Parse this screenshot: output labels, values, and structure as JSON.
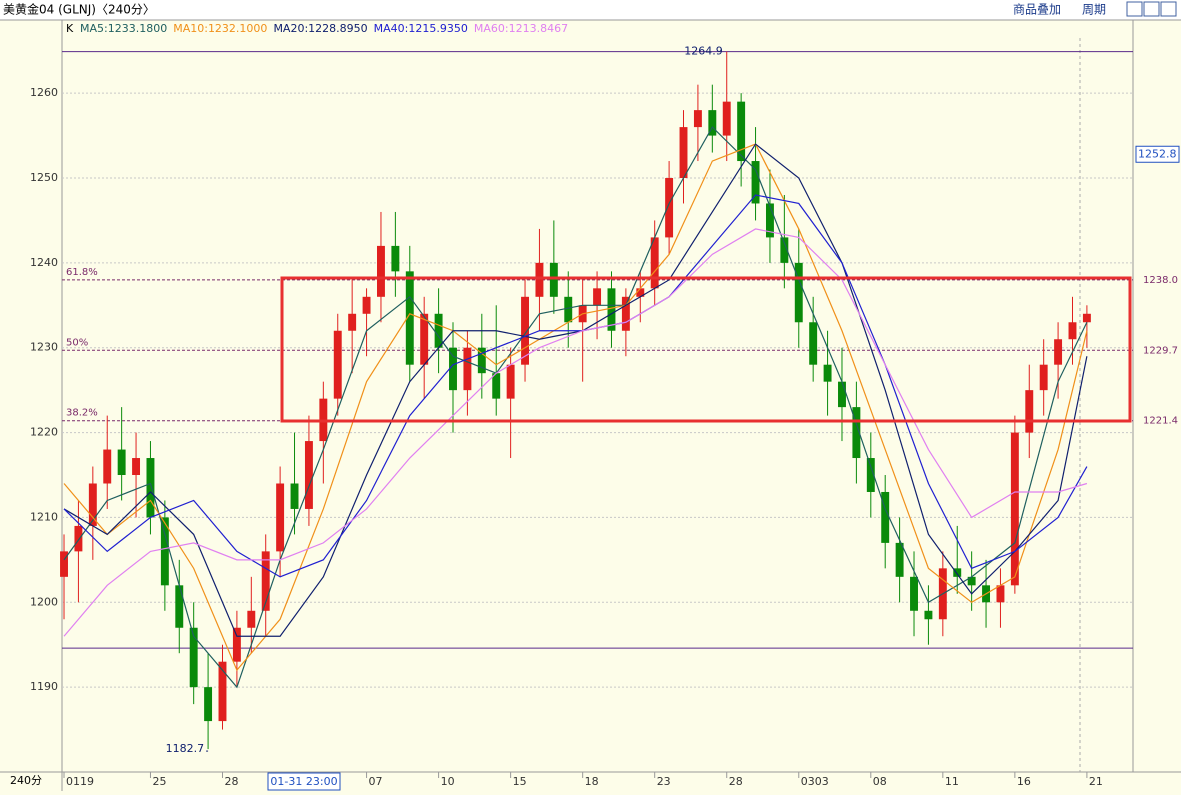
{
  "chart_data": {
    "type": "candlestick",
    "title": "美黄金04 (GLNJ)〈240分〉",
    "toolbar": [
      "商品叠加",
      "周期"
    ],
    "period_label": "240分",
    "cursor_label": "01-31 23:00",
    "candle_label": "K",
    "up_color": "#e0201e",
    "down_color": "#0a8a0a",
    "ylim": [
      1180,
      1266.5
    ],
    "yticks": [
      1190,
      1200,
      1210,
      1220,
      1230,
      1240,
      1250,
      1260
    ],
    "xlim": [
      -0.14,
      74.2
    ],
    "xticks": [
      {
        "value": 0,
        "label": "0119"
      },
      {
        "value": 6,
        "label": "25"
      },
      {
        "value": 11,
        "label": "28"
      },
      {
        "value": 21,
        "label": "07"
      },
      {
        "value": 26,
        "label": "10"
      },
      {
        "value": 31,
        "label": "15"
      },
      {
        "value": 36,
        "label": "18"
      },
      {
        "value": 41,
        "label": "23"
      },
      {
        "value": 46,
        "label": "28"
      },
      {
        "value": 51,
        "label": "0303"
      },
      {
        "value": 56,
        "label": "08"
      },
      {
        "value": 61,
        "label": "11"
      },
      {
        "value": 66,
        "label": "16"
      },
      {
        "value": 71,
        "label": "21"
      }
    ],
    "grid": true,
    "candles": [
      [
        1203,
        1208,
        1198,
        1206
      ],
      [
        1206,
        1212,
        1200,
        1209
      ],
      [
        1209,
        1216,
        1205,
        1214
      ],
      [
        1214,
        1222,
        1211,
        1218
      ],
      [
        1218,
        1223,
        1212,
        1215
      ],
      [
        1215,
        1220,
        1210,
        1217
      ],
      [
        1217,
        1219,
        1208,
        1210
      ],
      [
        1210,
        1212,
        1199,
        1202
      ],
      [
        1202,
        1205,
        1194,
        1197
      ],
      [
        1197,
        1200,
        1188,
        1190
      ],
      [
        1190,
        1194,
        1182.7,
        1186
      ],
      [
        1186,
        1195,
        1185,
        1193
      ],
      [
        1193,
        1199,
        1190,
        1197
      ],
      [
        1197,
        1203,
        1194,
        1199
      ],
      [
        1199,
        1208,
        1196,
        1206
      ],
      [
        1206,
        1216,
        1203,
        1214
      ],
      [
        1214,
        1220,
        1208,
        1211
      ],
      [
        1211,
        1222,
        1209,
        1219
      ],
      [
        1219,
        1226,
        1214,
        1224
      ],
      [
        1224,
        1234,
        1222,
        1232
      ],
      [
        1232,
        1238,
        1227,
        1234
      ],
      [
        1234,
        1237,
        1229,
        1236
      ],
      [
        1236,
        1246,
        1233,
        1242
      ],
      [
        1242,
        1246,
        1236,
        1239
      ],
      [
        1239,
        1242,
        1226,
        1228
      ],
      [
        1228,
        1236,
        1224,
        1234
      ],
      [
        1234,
        1237,
        1227,
        1230
      ],
      [
        1230,
        1233,
        1220,
        1225
      ],
      [
        1225,
        1232,
        1222,
        1230
      ],
      [
        1230,
        1234,
        1224,
        1227
      ],
      [
        1227,
        1235,
        1222,
        1224
      ],
      [
        1224,
        1230,
        1217,
        1228
      ],
      [
        1228,
        1238,
        1226,
        1236
      ],
      [
        1236,
        1244,
        1232,
        1240
      ],
      [
        1240,
        1245,
        1234,
        1236
      ],
      [
        1236,
        1239,
        1230,
        1233
      ],
      [
        1233,
        1238,
        1226,
        1235
      ],
      [
        1235,
        1239,
        1231,
        1237
      ],
      [
        1237,
        1239,
        1230,
        1232
      ],
      [
        1232,
        1237,
        1229,
        1236
      ],
      [
        1236,
        1239,
        1233,
        1237
      ],
      [
        1237,
        1245,
        1235,
        1243
      ],
      [
        1243,
        1252,
        1241,
        1250
      ],
      [
        1250,
        1258,
        1247,
        1256
      ],
      [
        1256,
        1261,
        1252,
        1258
      ],
      [
        1258,
        1261,
        1253,
        1255
      ],
      [
        1255,
        1264.9,
        1252,
        1259
      ],
      [
        1259,
        1260,
        1249,
        1252
      ],
      [
        1252,
        1256,
        1245,
        1247
      ],
      [
        1247,
        1251,
        1240,
        1243
      ],
      [
        1243,
        1248,
        1237,
        1240
      ],
      [
        1240,
        1244,
        1230,
        1233
      ],
      [
        1233,
        1236,
        1226,
        1228
      ],
      [
        1228,
        1232,
        1222,
        1226
      ],
      [
        1226,
        1230,
        1219,
        1223
      ],
      [
        1223,
        1226,
        1214,
        1217
      ],
      [
        1217,
        1220,
        1210,
        1213
      ],
      [
        1213,
        1215,
        1204,
        1207
      ],
      [
        1207,
        1210,
        1200,
        1203
      ],
      [
        1203,
        1206,
        1196,
        1199
      ],
      [
        1199,
        1202,
        1195,
        1198
      ],
      [
        1198,
        1206,
        1196,
        1204
      ],
      [
        1204,
        1209,
        1201,
        1203
      ],
      [
        1203,
        1206,
        1199,
        1202
      ],
      [
        1202,
        1205,
        1197,
        1200
      ],
      [
        1200,
        1204,
        1197,
        1202
      ],
      [
        1202,
        1222,
        1201,
        1220
      ],
      [
        1220,
        1228,
        1217,
        1225
      ],
      [
        1225,
        1231,
        1222,
        1228
      ],
      [
        1228,
        1233,
        1224,
        1231
      ],
      [
        1231,
        1236,
        1228,
        1233
      ],
      [
        1233,
        1235,
        1230,
        1234
      ]
    ],
    "ma_x": [
      0,
      3,
      6,
      9,
      12,
      15,
      18,
      21,
      24,
      27,
      30,
      33,
      36,
      39,
      42,
      45,
      48,
      51,
      54,
      57,
      60,
      63,
      66,
      69,
      71
    ],
    "series": [
      {
        "name": "MA5:1233.1800",
        "color": "#1f5f5f",
        "values": [
          1205,
          1212,
          1214,
          1196,
          1190,
          1205,
          1218,
          1232,
          1236,
          1229,
          1227,
          1234,
          1235,
          1235,
          1247,
          1256,
          1251,
          1238,
          1226,
          1211,
          1200,
          1203,
          1207,
          1226,
          1233
        ]
      },
      {
        "name": "MA10:1232.1000",
        "color": "#f0901a",
        "values": [
          1214,
          1208,
          1212,
          1204,
          1192,
          1198,
          1211,
          1226,
          1234,
          1232,
          1228,
          1231,
          1234,
          1235,
          1241,
          1252,
          1254,
          1244,
          1232,
          1218,
          1204,
          1200,
          1203,
          1218,
          1232
        ]
      },
      {
        "name": "MA20:1228.8950",
        "color": "#10206e",
        "values": [
          1211,
          1208,
          1213,
          1208,
          1196,
          1196,
          1203,
          1215,
          1226,
          1232,
          1232,
          1231,
          1232,
          1235,
          1238,
          1246,
          1254,
          1250,
          1240,
          1225,
          1208,
          1201,
          1206,
          1212,
          1229
        ]
      },
      {
        "name": "MA40:1215.9350",
        "color": "#2020d0",
        "values": [
          1211,
          1206,
          1210,
          1212,
          1206,
          1203,
          1205,
          1212,
          1222,
          1228,
          1230,
          1232,
          1232,
          1233,
          1236,
          1242,
          1248,
          1247,
          1240,
          1228,
          1214,
          1204,
          1206,
          1210,
          1216
        ]
      },
      {
        "name": "MA60:1213.8467",
        "color": "#e080f0",
        "values": [
          1196,
          1202,
          1206,
          1207,
          1205,
          1205,
          1207,
          1211,
          1217,
          1222,
          1227,
          1230,
          1232,
          1233,
          1236,
          1241,
          1244,
          1243,
          1238,
          1228,
          1218,
          1210,
          1213,
          1213,
          1214
        ]
      }
    ],
    "hlines": [
      1264.9,
      1194.6
    ],
    "high_label": 1264.9,
    "low_label": 1182.7,
    "fib_levels": [
      {
        "name": "61.8%",
        "price": {
          "value": 1238,
          "label": "1238.0"
        }
      },
      {
        "name": "50%",
        "price": {
          "value": 1229.7,
          "label": "1229.7"
        }
      },
      {
        "name": "38.2%",
        "price": {
          "value": 1221.4,
          "label": "1221.4"
        }
      }
    ],
    "current_price": 1252.8
  }
}
